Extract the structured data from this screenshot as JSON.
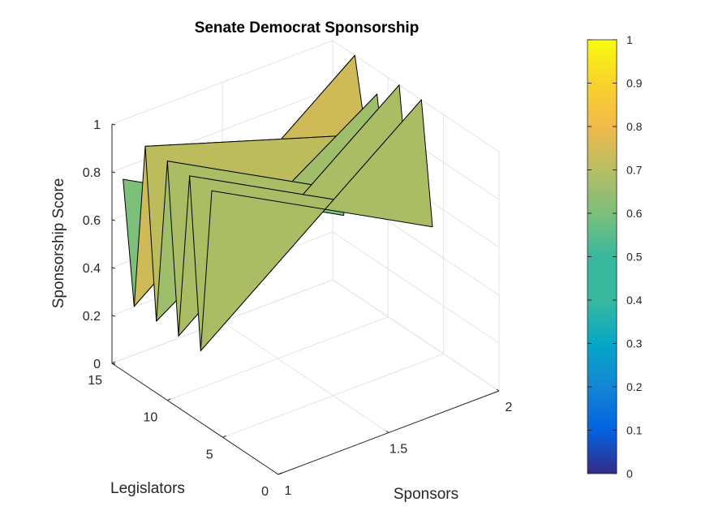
{
  "chart_data": {
    "type": "surface",
    "title": "Senate Democrat Sponsorship",
    "xlabel": "Sponsors",
    "ylabel": "Legislators",
    "zlabel": "Sponsorship Score",
    "xlim": [
      1,
      2
    ],
    "ylim": [
      0,
      15
    ],
    "zlim": [
      0,
      1
    ],
    "xticks": [
      "1",
      "1.5",
      "2"
    ],
    "yticks": [
      "0",
      "5",
      "10",
      "15"
    ],
    "zticks": [
      "0",
      "0.2",
      "0.4",
      "0.6",
      "0.8",
      "1"
    ],
    "colorbar": {
      "range": [
        0,
        1
      ],
      "ticks": [
        "0",
        "0.1",
        "0.2",
        "0.3",
        "0.4",
        "0.5",
        "0.6",
        "0.7",
        "0.8",
        "0.9",
        "1"
      ],
      "colormap": "parula"
    },
    "grid": true,
    "sponsors": [
      1,
      2
    ],
    "legislators": [
      6,
      7,
      8,
      9,
      10,
      11,
      12,
      13,
      14
    ],
    "scores": [
      [
        1.0,
        0.5
      ],
      [
        0.3,
        1.0
      ],
      [
        1.0,
        0.5
      ],
      [
        0.3,
        1.0
      ],
      [
        1.0,
        0.5
      ],
      [
        0.3,
        0.9
      ],
      [
        1.0,
        0.7
      ],
      [
        0.3,
        1.0
      ],
      [
        0.8,
        0.3
      ]
    ]
  }
}
